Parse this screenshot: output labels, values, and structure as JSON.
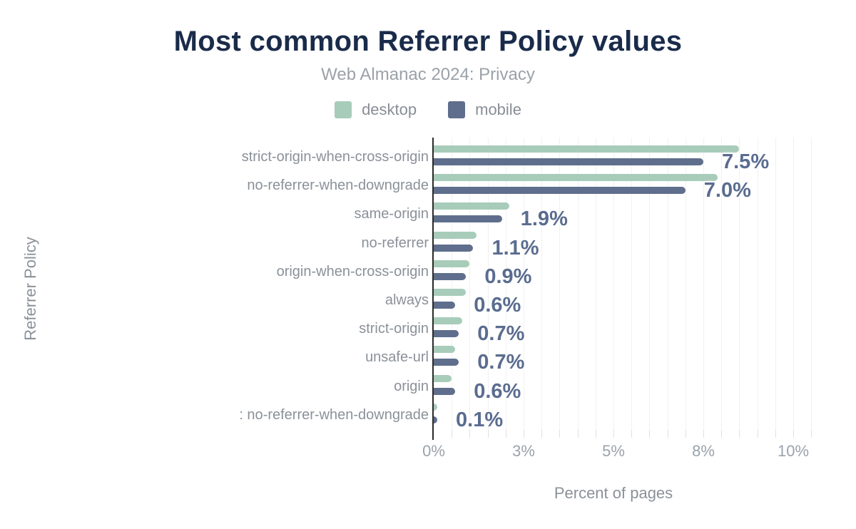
{
  "header": {
    "title": "Most common Referrer Policy values",
    "subtitle": "Web Almanac 2024: Privacy"
  },
  "legend": [
    {
      "label": "desktop",
      "color": "#a8ccba"
    },
    {
      "label": "mobile",
      "color": "#5f6e8c"
    }
  ],
  "colors": {
    "title": "#1a2b4a",
    "subtitle": "#9ba1a8",
    "desktop_bar": "#a8ccba",
    "mobile_bar": "#5f6e8c",
    "value_label": "#5a6c8f",
    "category_label": "#8b9199",
    "tick_label": "#9aa2ab",
    "gridline": "#f1f1f4",
    "axis": "#2a2a2a"
  },
  "chart_data": {
    "type": "bar",
    "orientation": "horizontal",
    "title": "Most common Referrer Policy values",
    "subtitle": "Web Almanac 2024: Privacy",
    "xlabel": "Percent of pages",
    "ylabel": "Referrer Policy",
    "grid": true,
    "xlim": [
      0,
      10.5
    ],
    "categories": [
      "strict-origin-when-cross-origin",
      "no-referrer-when-downgrade",
      "same-origin",
      "no-referrer",
      "origin-when-cross-origin",
      "always",
      "strict-origin",
      "unsafe-url",
      "origin",
      ": no-referrer-when-downgrade"
    ],
    "series": [
      {
        "name": "desktop",
        "values": [
          8.5,
          7.9,
          2.1,
          1.2,
          1.0,
          0.9,
          0.8,
          0.6,
          0.5,
          0.1
        ]
      },
      {
        "name": "mobile",
        "values": [
          7.5,
          7.0,
          1.9,
          1.1,
          0.9,
          0.6,
          0.7,
          0.7,
          0.6,
          0.1
        ]
      }
    ],
    "value_labels": [
      "7.5%",
      "7.0%",
      "1.9%",
      "1.1%",
      "0.9%",
      "0.6%",
      "0.7%",
      "0.7%",
      "0.6%",
      "0.1%"
    ],
    "x_ticks": [
      {
        "value": 0,
        "label": "0%"
      },
      {
        "value": 2.5,
        "label": "3%"
      },
      {
        "value": 5,
        "label": "5%"
      },
      {
        "value": 7.5,
        "label": "8%"
      },
      {
        "value": 10,
        "label": "10%"
      }
    ],
    "legend_position": "top"
  }
}
